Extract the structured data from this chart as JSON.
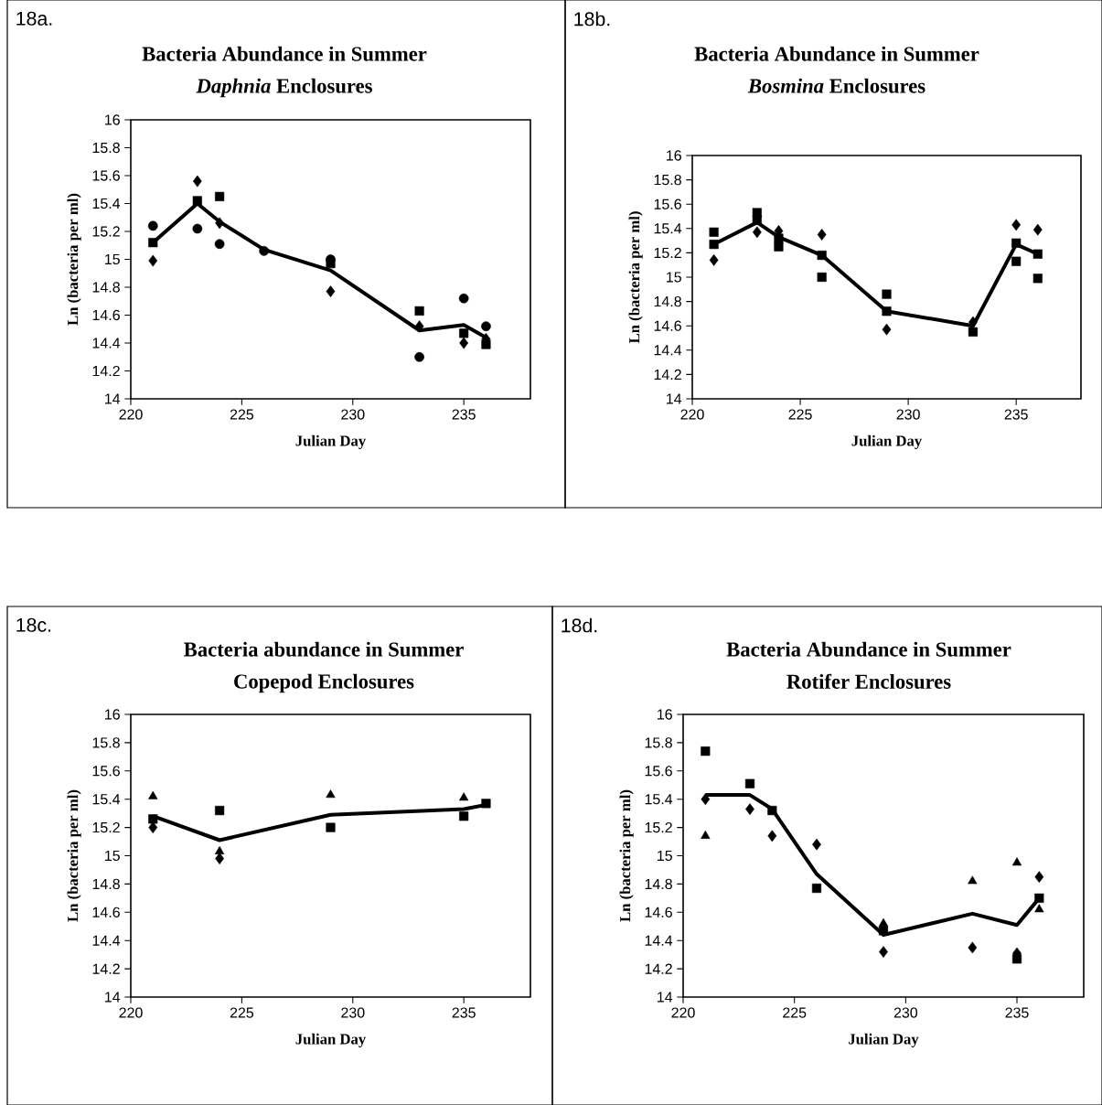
{
  "chart_data": [
    {
      "type": "scatter",
      "title": "Bacteria Abundance in Summer",
      "subtitle": "*Daphnia* Enclosures",
      "xlabel": "Julian Day",
      "ylabel": "Ln (bacteria per ml)",
      "annotations": [
        "18a."
      ],
      "x": [
        221,
        223,
        224,
        226,
        229,
        233,
        235,
        236
      ],
      "xlim": [
        220,
        238
      ],
      "xticks": [
        220,
        225,
        230,
        235
      ],
      "ylim": [
        14,
        16
      ],
      "yticks": [
        14,
        14.2,
        14.4,
        14.6,
        14.8,
        15,
        15.2,
        15.4,
        15.6,
        15.8,
        16
      ],
      "series": [
        {
          "color": "#000000",
          "marker": "diamond",
          "values": [
            14.99,
            15.56,
            15.26,
            null,
            14.77,
            14.52,
            14.4,
            14.43
          ]
        },
        {
          "color": "#000000",
          "marker": "square",
          "values": [
            15.12,
            15.42,
            15.45,
            null,
            14.97,
            14.63,
            14.47,
            14.39
          ]
        },
        {
          "color": "#000000",
          "marker": "circle",
          "values": [
            15.24,
            15.22,
            15.11,
            15.06,
            15.0,
            14.3,
            14.72,
            14.52
          ]
        },
        {
          "type": "line",
          "color": "#000000",
          "marker": "none",
          "line_style": "solid",
          "values": [
            15.12,
            15.4,
            15.27,
            15.07,
            14.92,
            14.49,
            14.53,
            14.44
          ]
        }
      ]
    },
    {
      "type": "scatter",
      "title": "Bacteria Abundance in Summer",
      "subtitle": "*Bosmina* Enclosures",
      "xlabel": "Julian Day",
      "ylabel": "Ln (bacteria per ml)",
      "annotations": [
        "18b."
      ],
      "x": [
        221,
        223,
        224,
        226,
        229,
        233,
        235,
        236
      ],
      "xlim": [
        220,
        238
      ],
      "xticks": [
        220,
        225,
        230,
        235
      ],
      "ylim": [
        14,
        16
      ],
      "yticks": [
        14,
        14.2,
        14.4,
        14.6,
        14.8,
        15,
        15.2,
        15.4,
        15.6,
        15.8,
        16
      ],
      "series": [
        {
          "color": "#000000",
          "marker": "diamond",
          "values": [
            15.14,
            15.37,
            15.38,
            15.35,
            14.57,
            14.63,
            15.43,
            15.39
          ]
        },
        {
          "color": "#000000",
          "marker": "square",
          "values": [
            15.37,
            15.53,
            15.32,
            15.18,
            14.86,
            null,
            15.28,
            15.19
          ]
        },
        {
          "color": "#000000",
          "marker": "square",
          "values": [
            15.27,
            15.47,
            15.25,
            15.0,
            14.72,
            14.55,
            15.13,
            14.99
          ]
        },
        {
          "type": "line",
          "color": "#000000",
          "marker": "none",
          "line_style": "solid",
          "values": [
            15.27,
            15.45,
            15.33,
            15.18,
            14.72,
            14.6,
            15.27,
            15.19
          ]
        }
      ]
    },
    {
      "type": "scatter",
      "title": "Bacteria abundance in Summer",
      "subtitle": "Copepod Enclosures",
      "xlabel": "Julian Day",
      "ylabel": "Ln (bacteria per ml)",
      "annotations": [
        "18c."
      ],
      "x": [
        221,
        224,
        229,
        235,
        236
      ],
      "xlim": [
        220,
        238
      ],
      "xticks": [
        220,
        225,
        230,
        235
      ],
      "ylim": [
        14,
        16
      ],
      "yticks": [
        14,
        14.2,
        14.4,
        14.6,
        14.8,
        15,
        15.2,
        15.4,
        15.6,
        15.8,
        16
      ],
      "series": [
        {
          "color": "#000000",
          "marker": "diamond",
          "values": [
            15.2,
            14.98,
            null,
            null,
            null
          ]
        },
        {
          "color": "#000000",
          "marker": "square",
          "values": [
            15.26,
            15.32,
            15.2,
            15.28,
            15.37
          ]
        },
        {
          "color": "#000000",
          "marker": "triangle",
          "values": [
            15.42,
            15.03,
            15.43,
            15.41,
            null
          ]
        },
        {
          "type": "line",
          "color": "#000000",
          "marker": "none",
          "line_style": "solid",
          "values": [
            15.28,
            15.11,
            15.29,
            15.33,
            15.36
          ]
        }
      ]
    },
    {
      "type": "scatter",
      "title": "Bacteria Abundance in Summer",
      "subtitle": "Rotifer Enclosures",
      "xlabel": "Julian Day",
      "ylabel": "Ln (bacteria per ml)",
      "annotations": [
        "18d."
      ],
      "x": [
        221,
        223,
        224,
        226,
        229,
        233,
        235,
        236
      ],
      "xlim": [
        220,
        238
      ],
      "xticks": [
        220,
        225,
        230,
        235
      ],
      "ylim": [
        14,
        16
      ],
      "yticks": [
        14,
        14.2,
        14.4,
        14.6,
        14.8,
        15,
        15.2,
        15.4,
        15.6,
        15.8,
        16
      ],
      "series": [
        {
          "color": "#000000",
          "marker": "diamond",
          "values": [
            15.4,
            15.33,
            15.14,
            15.08,
            14.32,
            14.35,
            14.31,
            14.85
          ]
        },
        {
          "color": "#000000",
          "marker": "square",
          "values": [
            15.74,
            15.51,
            15.32,
            14.77,
            14.47,
            null,
            14.27,
            14.7
          ]
        },
        {
          "color": "#000000",
          "marker": "triangle",
          "values": [
            15.14,
            null,
            null,
            null,
            14.52,
            14.82,
            14.95,
            14.62
          ]
        },
        {
          "type": "line",
          "color": "#000000",
          "marker": "none",
          "line_style": "solid",
          "values": [
            15.43,
            15.43,
            15.33,
            14.87,
            14.44,
            14.59,
            14.51,
            14.7
          ]
        }
      ]
    }
  ]
}
